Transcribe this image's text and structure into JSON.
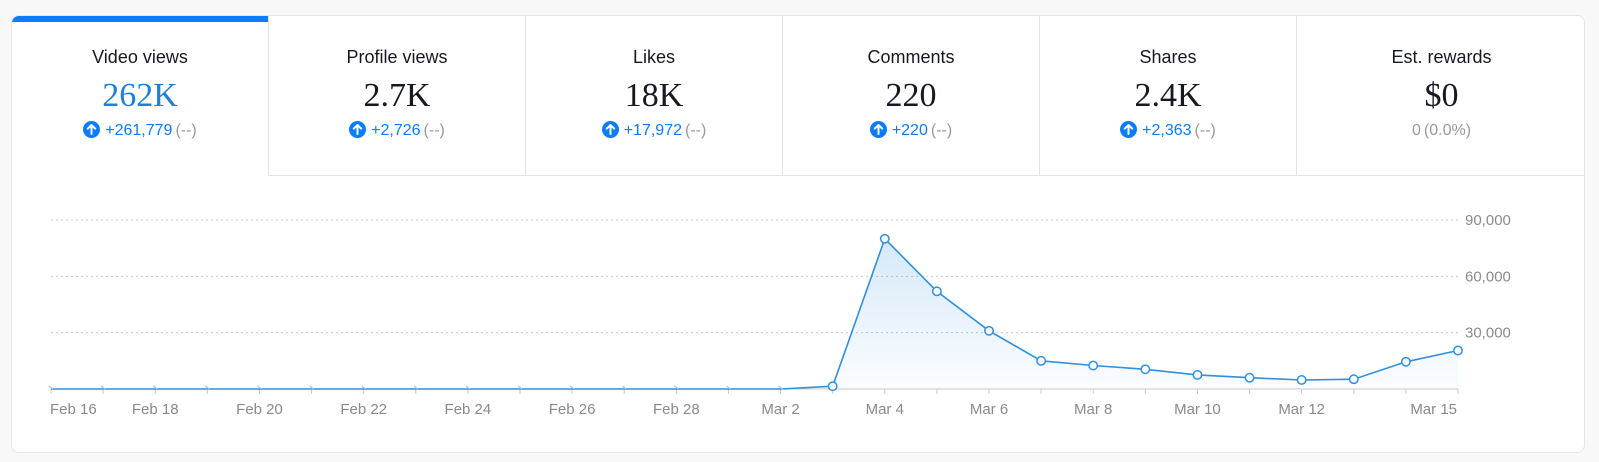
{
  "metrics": [
    {
      "label": "Video views",
      "value": "262K",
      "delta": "+261,779",
      "paren": "(--)"
    },
    {
      "label": "Profile views",
      "value": "2.7K",
      "delta": "+2,726",
      "paren": "(--)"
    },
    {
      "label": "Likes",
      "value": "18K",
      "delta": "+17,972",
      "paren": "(--)"
    },
    {
      "label": "Comments",
      "value": "220",
      "delta": "+220",
      "paren": "(--)"
    },
    {
      "label": "Shares",
      "value": "2.4K",
      "delta": "+2,363",
      "paren": "(--)"
    },
    {
      "label": "Est. rewards",
      "value": "$0",
      "delta": "0",
      "paren": "(0.0%)"
    }
  ],
  "colors": {
    "accent": "#0a7cff",
    "line": "#2f8fe0",
    "active_value": "#1e7fd6"
  },
  "icons": {
    "delta": "arrow-up-circle-icon"
  },
  "chart_data": {
    "type": "area",
    "y_ticks": [
      "90,000",
      "60,000",
      "30,000"
    ],
    "ylim": [
      0,
      90000
    ],
    "x_tick_labels": [
      "Feb 16",
      "Feb 18",
      "Feb 20",
      "Feb 22",
      "Feb 24",
      "Feb 26",
      "Feb 28",
      "Mar 2",
      "Mar 4",
      "Mar 6",
      "Mar 8",
      "Mar 10",
      "Mar 12",
      "Mar 15"
    ],
    "x": [
      "Feb 16",
      "Feb 17",
      "Feb 18",
      "Feb 19",
      "Feb 20",
      "Feb 21",
      "Feb 22",
      "Feb 23",
      "Feb 24",
      "Feb 25",
      "Feb 26",
      "Feb 27",
      "Feb 28",
      "Mar 1",
      "Mar 2",
      "Mar 3",
      "Mar 4",
      "Mar 5",
      "Mar 6",
      "Mar 7",
      "Mar 8",
      "Mar 9",
      "Mar 10",
      "Mar 11",
      "Mar 12",
      "Mar 13",
      "Mar 14",
      "Mar 15"
    ],
    "values": [
      0,
      0,
      0,
      0,
      0,
      0,
      0,
      0,
      0,
      0,
      0,
      0,
      0,
      0,
      0,
      1500,
      80000,
      52000,
      31000,
      15000,
      12500,
      10500,
      7500,
      6000,
      4800,
      5200,
      14500,
      20500
    ],
    "grid": true,
    "legend": "none"
  }
}
